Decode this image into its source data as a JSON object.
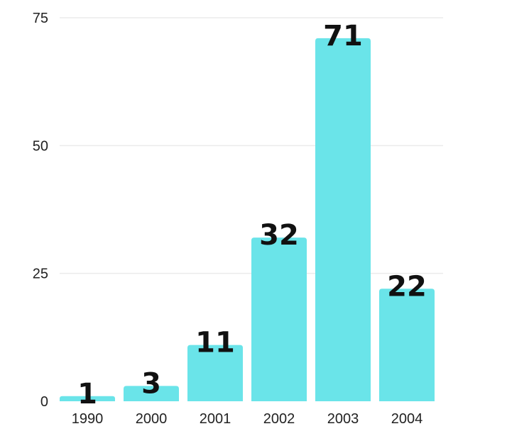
{
  "chart_data": {
    "type": "bar",
    "categories": [
      "1990",
      "2000",
      "2001",
      "2002",
      "2003",
      "2004"
    ],
    "values": [
      1,
      3,
      11,
      32,
      71,
      22
    ],
    "data_labels": [
      "1",
      "3",
      "11",
      "32",
      "71",
      "22"
    ],
    "y_ticks": [
      0,
      25,
      50,
      75
    ],
    "y_tick_labels": [
      "0",
      "25",
      "50",
      "75"
    ],
    "ylim": [
      0,
      75
    ],
    "grid": true,
    "legend": "none",
    "bar_color": "#6ae4e9"
  }
}
